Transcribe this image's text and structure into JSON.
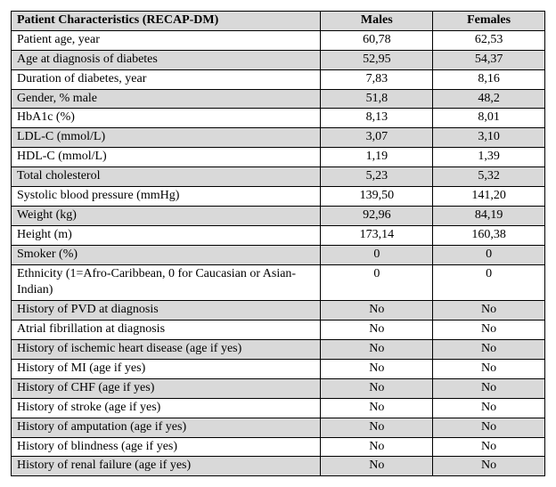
{
  "table": {
    "headers": {
      "label": "Patient Characteristics (RECAP-DM)",
      "col1": "Males",
      "col2": "Females"
    },
    "rows": [
      {
        "shade": false,
        "label": "Patient age, year",
        "male": "60,78",
        "female": "62,53"
      },
      {
        "shade": true,
        "label": "Age at diagnosis of diabetes",
        "male": "52,95",
        "female": "54,37"
      },
      {
        "shade": false,
        "label": "Duration of diabetes, year",
        "male": "7,83",
        "female": "8,16"
      },
      {
        "shade": true,
        "label": "Gender, % male",
        "male": "51,8",
        "female": "48,2"
      },
      {
        "shade": false,
        "label": "HbA1c (%)",
        "male": "8,13",
        "female": "8,01"
      },
      {
        "shade": true,
        "label": "LDL-C (mmol/L)",
        "male": "3,07",
        "female": "3,10"
      },
      {
        "shade": false,
        "label": "HDL-C (mmol/L)",
        "male": "1,19",
        "female": "1,39"
      },
      {
        "shade": true,
        "label": "Total cholesterol",
        "male": "5,23",
        "female": "5,32"
      },
      {
        "shade": false,
        "label": "Systolic blood pressure (mmHg)",
        "male": "139,50",
        "female": "141,20"
      },
      {
        "shade": true,
        "label": "Weight (kg)",
        "male": "92,96",
        "female": "84,19"
      },
      {
        "shade": false,
        "label": "Height (m)",
        "male": "173,14",
        "female": "160,38"
      },
      {
        "shade": true,
        "label": "Smoker (%)",
        "male": "0",
        "female": "0"
      },
      {
        "shade": false,
        "label": "Ethnicity (1=Afro-Caribbean, 0 for Caucasian or Asian-Indian)",
        "male": "0",
        "female": "0"
      },
      {
        "shade": true,
        "label": "History of PVD at diagnosis",
        "male": "No",
        "female": "No"
      },
      {
        "shade": false,
        "label": "Atrial fibrillation at diagnosis",
        "male": "No",
        "female": "No"
      },
      {
        "shade": true,
        "label": "History of ischemic heart disease (age if yes)",
        "male": "No",
        "female": "No"
      },
      {
        "shade": false,
        "label": "History of MI (age if yes)",
        "male": "No",
        "female": "No"
      },
      {
        "shade": true,
        "label": "History of CHF (age if yes)",
        "male": "No",
        "female": "No"
      },
      {
        "shade": false,
        "label": "History of stroke (age if yes)",
        "male": "No",
        "female": "No"
      },
      {
        "shade": true,
        "label": "History of amputation (age if yes)",
        "male": "No",
        "female": "No"
      },
      {
        "shade": false,
        "label": "History of blindness (age if yes)",
        "male": "No",
        "female": "No"
      },
      {
        "shade": true,
        "label": "History of renal failure (age if yes)",
        "male": "No",
        "female": "No"
      }
    ]
  }
}
